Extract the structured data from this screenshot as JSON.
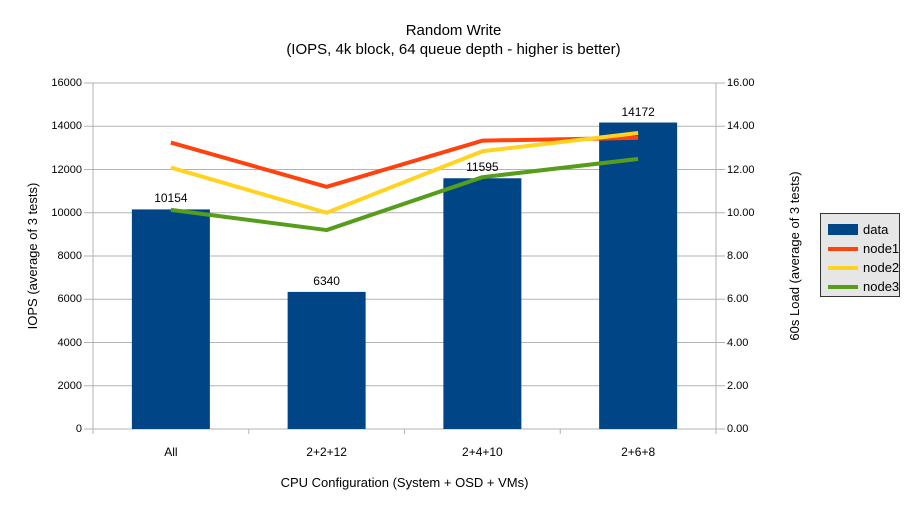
{
  "chart_data": {
    "type": "bar+line",
    "title": "Random Write",
    "subtitle": "(IOPS, 4k block, 64 queue depth - higher is better)",
    "categories": [
      "All",
      "2+2+12",
      "2+4+10",
      "2+6+8"
    ],
    "xlabel": "CPU Configuration (System + OSD + VMs)",
    "left_axis": {
      "label": "IOPS (average of 3 tests)",
      "min": 0,
      "max": 16000,
      "step": 2000,
      "decimals": 0
    },
    "right_axis": {
      "label": "60s Load (average of 3 tests)",
      "min": 0,
      "max": 18,
      "step": 2,
      "decimals": 2
    },
    "grid": {
      "horizontal": true,
      "color": "#b3b3b3"
    },
    "bar_series": {
      "name": "data",
      "axis": "left",
      "color": "#004586",
      "values": [
        10154,
        6340,
        11595,
        14172
      ],
      "data_labels": [
        "10154",
        "6340",
        "11595",
        "14172"
      ]
    },
    "line_series": [
      {
        "name": "node1",
        "axis": "right",
        "color": "#FF420E",
        "values": [
          14.9,
          12.6,
          15.0,
          15.15
        ]
      },
      {
        "name": "node2",
        "axis": "right",
        "color": "#FFD320",
        "values": [
          13.6,
          11.25,
          14.45,
          15.4
        ]
      },
      {
        "name": "node3",
        "axis": "right",
        "color": "#579D1C",
        "values": [
          11.4,
          10.35,
          13.1,
          14.05
        ]
      }
    ],
    "legend": {
      "position": "right",
      "entries": [
        {
          "label": "data",
          "color": "#004586",
          "swatch": "box"
        },
        {
          "label": "node1",
          "color": "#FF420E",
          "swatch": "line"
        },
        {
          "label": "node2",
          "color": "#FFD320",
          "swatch": "line"
        },
        {
          "label": "node3",
          "color": "#579D1C",
          "swatch": "line"
        }
      ]
    }
  },
  "colors": {
    "background": "#ffffff",
    "axis": "#b3b3b3",
    "text": "#000000",
    "legend_background": "#e6e6e6",
    "legend_border": "#333333"
  }
}
